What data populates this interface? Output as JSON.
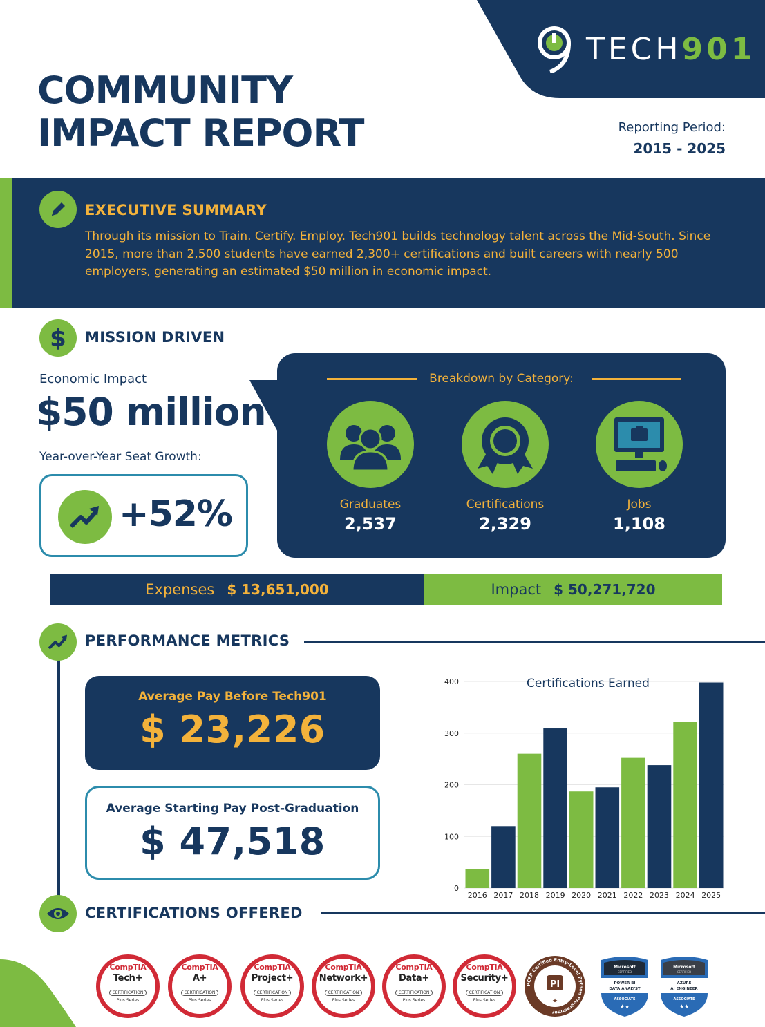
{
  "header": {
    "logo_text": "TECH",
    "logo_num": "901",
    "title_line1": "COMMUNITY",
    "title_line2": "IMPACT REPORT",
    "period_label": "Reporting Period:",
    "period": "2015 - 2025"
  },
  "executive_summary": {
    "title": "EXECUTIVE SUMMARY",
    "body": "Through its mission to Train. Certify. Employ. Tech901 builds technology talent across the Mid-South. Since 2015, more than 2,500 students have earned 2,300+ certifications and built careers with nearly 500 employers, generating an estimated $50 million in economic impact."
  },
  "mission": {
    "title": "MISSION DRIVEN",
    "econ_label": "Economic Impact",
    "econ_value": "$50 million",
    "yoy_label": "Year-over-Year Seat Growth:",
    "growth": "+52%",
    "breakdown_title": "Breakdown by Category:",
    "categories": [
      {
        "label": "Graduates",
        "value": "2,537",
        "icon": "people-icon"
      },
      {
        "label": "Certifications",
        "value": "2,329",
        "icon": "award-icon"
      },
      {
        "label": "Jobs",
        "value": "1,108",
        "icon": "computer-icon"
      }
    ]
  },
  "finance": {
    "expenses_label": "Expenses",
    "expenses_value": "$ 13,651,000",
    "impact_label": "Impact",
    "impact_value": "$ 50,271,720"
  },
  "performance": {
    "title": "PERFORMANCE METRICS",
    "pay_before_label": "Average Pay Before Tech901",
    "pay_before_value": "$ 23,226",
    "pay_after_label": "Average Starting Pay Post-Graduation",
    "pay_after_value": "$ 47,518"
  },
  "chart_data": {
    "type": "bar",
    "title": "Certifications Earned",
    "categories": [
      "2016",
      "2017",
      "2018",
      "2019",
      "2020",
      "2021",
      "2022",
      "2023",
      "2024",
      "2025"
    ],
    "values": [
      37,
      120,
      260,
      309,
      187,
      195,
      252,
      238,
      322,
      398
    ],
    "colors": [
      "#7dbb42",
      "#17375e",
      "#7dbb42",
      "#17375e",
      "#7dbb42",
      "#17375e",
      "#7dbb42",
      "#17375e",
      "#7dbb42",
      "#17375e"
    ],
    "yticks": [
      0,
      100,
      200,
      300,
      400
    ],
    "ylim": [
      0,
      400
    ],
    "grid": true
  },
  "certifications": {
    "title": "CERTIFICATIONS OFFERED",
    "comptia_brand": "CompTIA",
    "cert_tag": "CERTIFICATION",
    "series_tag": "Plus Series",
    "comptia": [
      "Tech+",
      "A+",
      "Project+",
      "Network+",
      "Data+",
      "Security+"
    ],
    "python_badge": "PI",
    "python_ring": "PCEP Certified Entry-Level Python Programmer",
    "ms1_top": "Microsoft",
    "ms1_sub": "CERTIFIED",
    "ms1_name1": "POWER BI",
    "ms1_name2": "DATA ANALYST",
    "ms1_level": "ASSOCIATE",
    "ms2_top": "Microsoft",
    "ms2_sub": "CERTIFIED",
    "ms2_name1": "AZURE",
    "ms2_name2": "AI ENGINEER",
    "ms2_level": "ASSOCIATE"
  },
  "colors": {
    "navy": "#17375e",
    "green": "#7dbb42",
    "gold": "#f3b23b",
    "teal": "#2c8cac"
  }
}
